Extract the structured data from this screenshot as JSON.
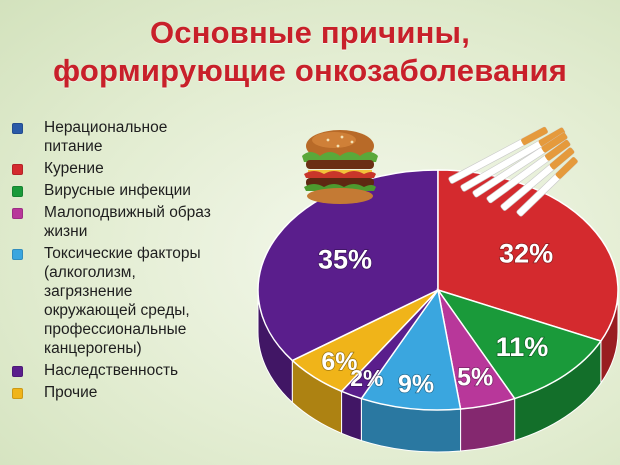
{
  "title": {
    "line1": "Основные причины,",
    "line2": "формирующие онкозаболевания"
  },
  "icons": {
    "burger": "burger-icon",
    "cigarettes": "cigarettes-icon"
  },
  "chart_data": {
    "type": "pie",
    "title": "Основные причины, формирующие онкозаболевания",
    "legend_position": "left",
    "slices": [
      {
        "label": "Нерациональное питание",
        "value": 35,
        "value_label": "35%",
        "color": "#5a1e8c"
      },
      {
        "label": "Курение",
        "value": 32,
        "value_label": "32%",
        "color": "#d42a2e"
      },
      {
        "label": "Вирусные инфекции",
        "value": 11,
        "value_label": "11%",
        "color": "#1a9a3a"
      },
      {
        "label": "Малоподвижный образ жизни",
        "value": 5,
        "value_label": "5%",
        "color": "#b8379a"
      },
      {
        "label": "Токсические факторы (алкоголизм, загрязнение окружающей среды, профессиональные канцерогены)",
        "value": 9,
        "value_label": "9%",
        "color": "#3aa6df"
      },
      {
        "label": "Наследственность",
        "value": 2,
        "value_label": "2%",
        "color": "#5a1e8c"
      },
      {
        "label": "Прочие",
        "value": 6,
        "value_label": "6%",
        "color": "#f0b419"
      }
    ]
  },
  "legend": [
    {
      "label": "Нерациональное\nпитание",
      "color": "#2a5aa8"
    },
    {
      "label": "Курение",
      "color": "#d42a2e"
    },
    {
      "label": "Вирусные инфекции",
      "color": "#1a9a3a"
    },
    {
      "label": "Малоподвижный образ\nжизни",
      "color": "#b8379a"
    },
    {
      "label": "Токсические факторы\n(алкоголизм,\nзагрязнение\nокружающей среды,\nпрофессиональные\nканцерогены)",
      "color": "#3aa6df"
    },
    {
      "label": "Наследственность",
      "color": "#5a1e8c"
    },
    {
      "label": "Прочие",
      "color": "#f0b419"
    }
  ]
}
